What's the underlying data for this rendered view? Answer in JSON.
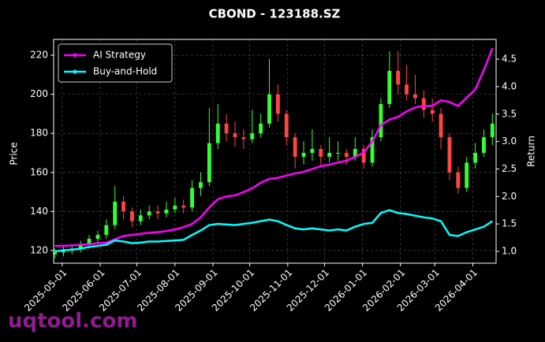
{
  "chart_data": {
    "type": "candlestick",
    "title": "CBOND - 123188.SZ",
    "y_label": "Price",
    "y2_label": "Return",
    "watermark": "uqtool.com",
    "x": [
      "2025-04-25",
      "2025-05-02",
      "2025-05-09",
      "2025-05-16",
      "2025-05-23",
      "2025-05-30",
      "2025-06-06",
      "2025-06-13",
      "2025-06-20",
      "2025-06-27",
      "2025-07-04",
      "2025-07-11",
      "2025-07-18",
      "2025-07-25",
      "2025-08-01",
      "2025-08-08",
      "2025-08-15",
      "2025-08-22",
      "2025-08-29",
      "2025-09-05",
      "2025-09-12",
      "2025-09-19",
      "2025-09-26",
      "2025-10-03",
      "2025-10-10",
      "2025-10-17",
      "2025-10-24",
      "2025-10-31",
      "2025-11-07",
      "2025-11-14",
      "2025-11-21",
      "2025-11-28",
      "2025-12-05",
      "2025-12-12",
      "2025-12-19",
      "2025-12-26",
      "2026-01-02",
      "2026-01-09",
      "2026-01-16",
      "2026-01-23",
      "2026-01-30",
      "2026-02-06",
      "2026-02-13",
      "2026-02-20",
      "2026-02-27",
      "2026-03-06",
      "2026-03-13",
      "2026-03-20",
      "2026-03-27",
      "2026-04-03",
      "2026-04-10",
      "2026-04-17"
    ],
    "open": [
      118,
      119,
      120,
      121,
      123,
      126,
      128,
      133,
      145,
      140,
      135,
      138,
      140,
      139,
      141,
      143,
      142,
      152,
      155,
      175,
      185,
      180,
      178,
      177,
      180,
      185,
      200,
      190,
      178,
      168,
      170,
      172,
      168,
      170,
      170,
      168,
      172,
      165,
      178,
      195,
      212,
      205,
      200,
      198,
      192,
      190,
      178,
      160,
      152,
      165,
      170,
      178
    ],
    "high": [
      121,
      122,
      123,
      125,
      128,
      130,
      136,
      153,
      148,
      142,
      141,
      143,
      143,
      145,
      147,
      146,
      156,
      160,
      193,
      195,
      190,
      186,
      182,
      192,
      190,
      218,
      205,
      192,
      180,
      176,
      182,
      174,
      178,
      176,
      172,
      178,
      174,
      182,
      198,
      222,
      222,
      215,
      210,
      202,
      198,
      193,
      180,
      163,
      168,
      175,
      182,
      190
    ],
    "low": [
      116,
      117,
      118,
      119,
      121,
      124,
      126,
      131,
      136,
      132,
      133,
      136,
      136,
      137,
      139,
      139,
      140,
      148,
      153,
      172,
      176,
      173,
      172,
      175,
      178,
      183,
      186,
      174,
      162,
      164,
      166,
      163,
      165,
      166,
      164,
      166,
      162,
      163,
      176,
      193,
      200,
      197,
      195,
      188,
      186,
      172,
      156,
      149,
      150,
      162,
      168,
      174
    ],
    "close": [
      119,
      120,
      121,
      123,
      126,
      128,
      133,
      145,
      140,
      135,
      138,
      140,
      139,
      141,
      143,
      142,
      152,
      155,
      175,
      185,
      180,
      178,
      177,
      180,
      185,
      200,
      190,
      178,
      168,
      170,
      172,
      168,
      170,
      170,
      168,
      172,
      165,
      178,
      195,
      212,
      205,
      200,
      198,
      192,
      190,
      178,
      160,
      152,
      165,
      170,
      178,
      185
    ],
    "up_color": "#33ff33",
    "down_color": "#ff4444",
    "series": [
      {
        "name": "AI Strategy",
        "color": "#ff00ff",
        "axis": "y2",
        "values": [
          1.1,
          1.1,
          1.11,
          1.12,
          1.13,
          1.15,
          1.16,
          1.22,
          1.28,
          1.3,
          1.32,
          1.34,
          1.35,
          1.37,
          1.4,
          1.44,
          1.5,
          1.62,
          1.8,
          1.95,
          2.0,
          2.02,
          2.08,
          2.15,
          2.25,
          2.32,
          2.34,
          2.38,
          2.42,
          2.45,
          2.5,
          2.55,
          2.58,
          2.62,
          2.65,
          2.72,
          2.8,
          3.0,
          3.3,
          3.4,
          3.45,
          3.55,
          3.62,
          3.65,
          3.65,
          3.75,
          3.72,
          3.65,
          3.8,
          3.95,
          4.3,
          4.7
        ]
      },
      {
        "name": "Buy-and-Hold",
        "color": "#00ffff",
        "axis": "y2",
        "values": [
          1.0,
          1.02,
          1.03,
          1.05,
          1.08,
          1.1,
          1.12,
          1.2,
          1.18,
          1.15,
          1.16,
          1.18,
          1.18,
          1.19,
          1.2,
          1.21,
          1.3,
          1.38,
          1.48,
          1.5,
          1.49,
          1.48,
          1.5,
          1.52,
          1.55,
          1.58,
          1.55,
          1.48,
          1.42,
          1.4,
          1.42,
          1.4,
          1.38,
          1.4,
          1.38,
          1.45,
          1.5,
          1.52,
          1.7,
          1.75,
          1.7,
          1.68,
          1.65,
          1.62,
          1.6,
          1.55,
          1.3,
          1.28,
          1.35,
          1.4,
          1.45,
          1.55
        ]
      }
    ],
    "xlim": [
      "2025-04-24",
      "2026-04-20"
    ],
    "xticks": [
      "2025-05-01",
      "2025-06-01",
      "2025-07-01",
      "2025-08-01",
      "2025-09-01",
      "2025-10-01",
      "2025-11-01",
      "2025-12-01",
      "2026-01-01",
      "2026-02-01",
      "2026-03-01",
      "2026-04-01"
    ],
    "ylim": [
      113.5,
      228.1
    ],
    "yticks": [
      120,
      140,
      160,
      180,
      200,
      220
    ],
    "y2lim": [
      0.785,
      4.86
    ],
    "y2ticks": [
      {
        "value": 1,
        "label": "1.0"
      },
      1.5,
      {
        "value": 2,
        "label": "2.0"
      },
      2.5,
      {
        "value": 3,
        "label": "3.0"
      },
      3.5,
      {
        "value": 4,
        "label": "4.0"
      },
      4.5
    ],
    "grid": true,
    "legend": "upper left"
  }
}
